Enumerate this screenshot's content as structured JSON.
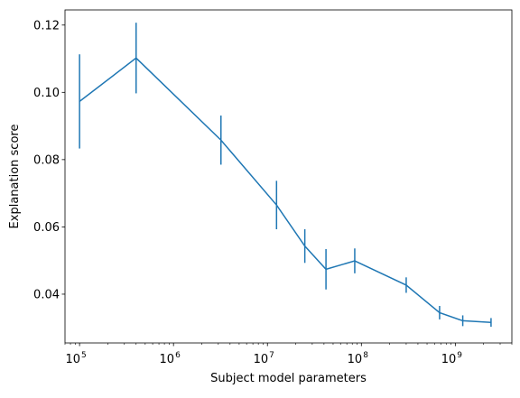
{
  "chart_data": {
    "type": "line",
    "title": "",
    "xlabel": "Subject model parameters",
    "ylabel": "Explanation score",
    "x_scale": "log",
    "xlim": [
      70000,
      4000000000
    ],
    "ylim": [
      0.0255,
      0.1245
    ],
    "grid": false,
    "legend": "none",
    "x_ticks": [
      {
        "value": 100000,
        "base": "10",
        "exp": "5"
      },
      {
        "value": 1000000,
        "base": "10",
        "exp": "6"
      },
      {
        "value": 10000000,
        "base": "10",
        "exp": "7"
      },
      {
        "value": 100000000,
        "base": "10",
        "exp": "8"
      },
      {
        "value": 1000000000,
        "base": "10",
        "exp": "9"
      }
    ],
    "y_ticks": [
      {
        "value": 0.04,
        "label": "0.04"
      },
      {
        "value": 0.06,
        "label": "0.06"
      },
      {
        "value": 0.08,
        "label": "0.08"
      },
      {
        "value": 0.1,
        "label": "0.10"
      },
      {
        "value": 0.12,
        "label": "0.12"
      }
    ],
    "series": [
      {
        "color": "#1f77b4",
        "x": [
          100000,
          400000,
          3200000,
          12500000,
          25000000,
          42000000,
          85000000,
          300000000,
          680000000,
          1200000000,
          2400000000
        ],
        "y": [
          0.0973,
          0.1102,
          0.0858,
          0.0665,
          0.0543,
          0.0474,
          0.0499,
          0.0427,
          0.0345,
          0.0321,
          0.0316
        ],
        "err": [
          0.014,
          0.0105,
          0.0073,
          0.0072,
          0.005,
          0.006,
          0.0037,
          0.0023,
          0.002,
          0.0016,
          0.0013
        ]
      }
    ]
  }
}
